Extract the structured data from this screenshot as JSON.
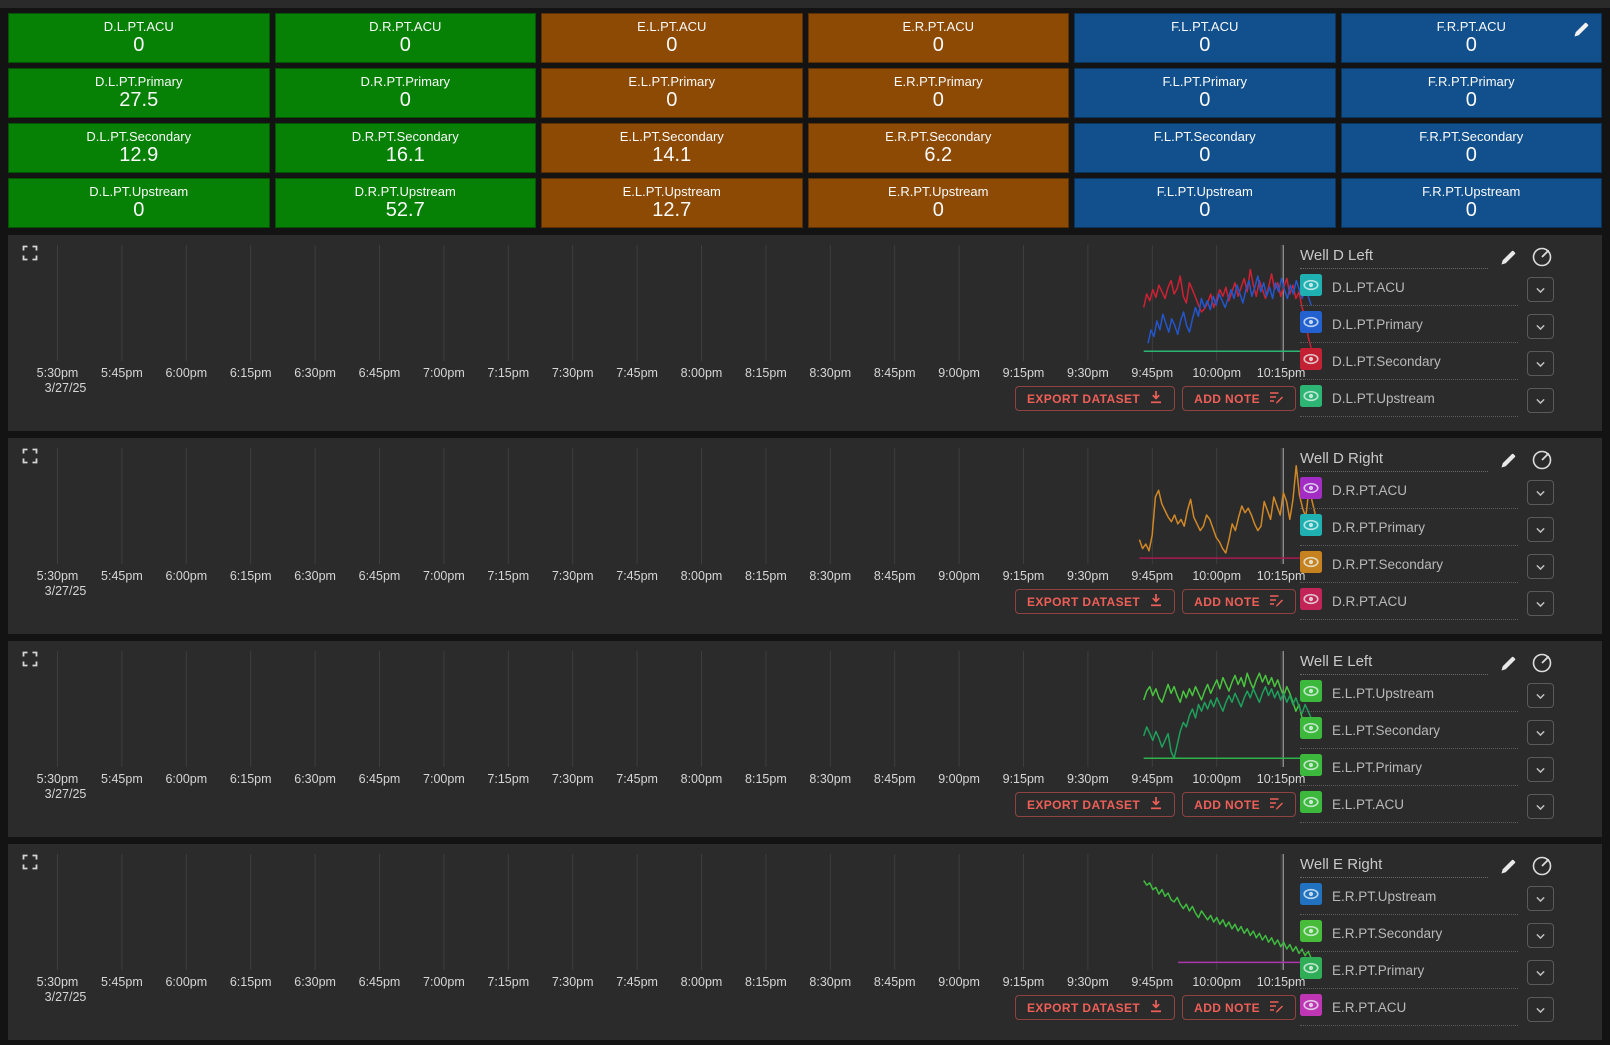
{
  "tile_colors": {
    "green": "#068106",
    "brown": "#8c4a04",
    "blue": "#11508c"
  },
  "tiles": [
    {
      "label": "D.L.PT.ACU",
      "value": "0",
      "color": "green"
    },
    {
      "label": "D.R.PT.ACU",
      "value": "0",
      "color": "green"
    },
    {
      "label": "E.L.PT.ACU",
      "value": "0",
      "color": "brown"
    },
    {
      "label": "E.R.PT.ACU",
      "value": "0",
      "color": "brown"
    },
    {
      "label": "F.L.PT.ACU",
      "value": "0",
      "color": "blue"
    },
    {
      "label": "F.R.PT.ACU",
      "value": "0",
      "color": "blue",
      "edit_icon": true
    },
    {
      "label": "D.L.PT.Primary",
      "value": "27.5",
      "color": "green"
    },
    {
      "label": "D.R.PT.Primary",
      "value": "0",
      "color": "green"
    },
    {
      "label": "E.L.PT.Primary",
      "value": "0",
      "color": "brown"
    },
    {
      "label": "E.R.PT.Primary",
      "value": "0",
      "color": "brown"
    },
    {
      "label": "F.L.PT.Primary",
      "value": "0",
      "color": "blue"
    },
    {
      "label": "F.R.PT.Primary",
      "value": "0",
      "color": "blue"
    },
    {
      "label": "D.L.PT.Secondary",
      "value": "12.9",
      "color": "green"
    },
    {
      "label": "D.R.PT.Secondary",
      "value": "16.1",
      "color": "green"
    },
    {
      "label": "E.L.PT.Secondary",
      "value": "14.1",
      "color": "brown"
    },
    {
      "label": "E.R.PT.Secondary",
      "value": "6.2",
      "color": "brown"
    },
    {
      "label": "F.L.PT.Secondary",
      "value": "0",
      "color": "blue"
    },
    {
      "label": "F.R.PT.Secondary",
      "value": "0",
      "color": "blue"
    },
    {
      "label": "D.L.PT.Upstream",
      "value": "0",
      "color": "green"
    },
    {
      "label": "D.R.PT.Upstream",
      "value": "52.7",
      "color": "green"
    },
    {
      "label": "E.L.PT.Upstream",
      "value": "12.7",
      "color": "brown"
    },
    {
      "label": "E.R.PT.Upstream",
      "value": "0",
      "color": "brown"
    },
    {
      "label": "F.L.PT.Upstream",
      "value": "0",
      "color": "blue"
    },
    {
      "label": "F.R.PT.Upstream",
      "value": "0",
      "color": "blue"
    }
  ],
  "axis": {
    "ticks": [
      "5:30pm",
      "5:45pm",
      "6:00pm",
      "6:15pm",
      "6:30pm",
      "6:45pm",
      "7:00pm",
      "7:15pm",
      "7:30pm",
      "7:45pm",
      "8:00pm",
      "8:15pm",
      "8:30pm",
      "8:45pm",
      "9:00pm",
      "9:15pm",
      "9:30pm",
      "9:45pm",
      "10:00pm",
      "10:15pm"
    ],
    "date": "3/27/25"
  },
  "actions": {
    "export_label": "EXPORT DATASET",
    "add_note_label": "ADD NOTE"
  },
  "panels": [
    {
      "title": "Well D Left",
      "legend": [
        {
          "label": "D.L.PT.ACU",
          "color": "#1fb1b1"
        },
        {
          "label": "D.L.PT.Primary",
          "color": "#2361d1"
        },
        {
          "label": "D.L.PT.Secondary",
          "color": "#c32033"
        },
        {
          "label": "D.L.PT.Upstream",
          "color": "#2cb573"
        }
      ]
    },
    {
      "title": "Well D Right",
      "legend": [
        {
          "label": "D.R.PT.ACU",
          "color": "#a22cc4"
        },
        {
          "label": "D.R.PT.Primary",
          "color": "#1fb1b1"
        },
        {
          "label": "D.R.PT.Secondary",
          "color": "#c5821f"
        },
        {
          "label": "D.R.PT.ACU",
          "color": "#c22457"
        }
      ]
    },
    {
      "title": "Well E Left",
      "legend": [
        {
          "label": "E.L.PT.Upstream",
          "color": "#3cb83c"
        },
        {
          "label": "E.L.PT.Secondary",
          "color": "#3cb83c"
        },
        {
          "label": "E.L.PT.Primary",
          "color": "#3cb83c"
        },
        {
          "label": "E.L.PT.ACU",
          "color": "#3cb83c"
        }
      ]
    },
    {
      "title": "Well E Right",
      "legend": [
        {
          "label": "E.R.PT.Upstream",
          "color": "#2173c2"
        },
        {
          "label": "E.R.PT.Secondary",
          "color": "#47bb3a"
        },
        {
          "label": "E.R.PT.Primary",
          "color": "#2fae57"
        },
        {
          "label": "E.R.PT.ACU",
          "color": "#bf36b4"
        }
      ]
    }
  ],
  "chart_data": [
    {
      "type": "line",
      "title": "Well D Left",
      "x_axis": {
        "start": "5:30pm",
        "end": "10:22pm",
        "tick_interval_min": 15
      },
      "cursor_time": "10:15pm",
      "grid": true,
      "series": [
        {
          "name": "D.L.PT.Secondary",
          "color": "#cf2134",
          "start_min": 253,
          "end_min": 292,
          "values": [
            46,
            58,
            52,
            62,
            55,
            66,
            60,
            54,
            64,
            70,
            58,
            63,
            74,
            56,
            50,
            68,
            62,
            55,
            48,
            42,
            45,
            50,
            58,
            46,
            54,
            62,
            56,
            64,
            52,
            60,
            68,
            56,
            64,
            72,
            60,
            80,
            66,
            56,
            70,
            62,
            54,
            64,
            76,
            62,
            68,
            56,
            64,
            72,
            58,
            66,
            54,
            60,
            46,
            38,
            20,
            10
          ]
        },
        {
          "name": "D.L.PT.Primary",
          "color": "#2356cc",
          "start_min": 254,
          "end_min": 292,
          "values": [
            14,
            26,
            20,
            34,
            26,
            40,
            32,
            24,
            36,
            30,
            22,
            34,
            42,
            30,
            24,
            36,
            46,
            38,
            54,
            46,
            52,
            44,
            56,
            48,
            58,
            52,
            46,
            54,
            62,
            54,
            66,
            58,
            50,
            62,
            70,
            56,
            64,
            74,
            60,
            68,
            56,
            64,
            54,
            68,
            60,
            72,
            62,
            54,
            66,
            58,
            70,
            62,
            54,
            64,
            56,
            48
          ]
        },
        {
          "name": "D.L.PT.Upstream",
          "color": "#2bb573",
          "start_min": 253,
          "end_min": 291,
          "values": [
            7,
            7
          ]
        }
      ]
    },
    {
      "type": "line",
      "title": "Well D Right",
      "x_axis": {
        "start": "5:30pm",
        "end": "10:22pm",
        "tick_interval_min": 15
      },
      "cursor_time": "10:15pm",
      "grid": true,
      "series": [
        {
          "name": "D.R.PT.Secondary",
          "color": "#d08827",
          "start_min": 252,
          "end_min": 293,
          "values": [
            20,
            12,
            16,
            10,
            24,
            58,
            64,
            52,
            46,
            40,
            36,
            42,
            34,
            38,
            32,
            46,
            56,
            40,
            34,
            28,
            32,
            42,
            38,
            30,
            22,
            18,
            12,
            8,
            20,
            34,
            28,
            40,
            50,
            44,
            48,
            42,
            34,
            28,
            32,
            54,
            46,
            38,
            58,
            50,
            42,
            62,
            54,
            38,
            56,
            86,
            60,
            48,
            40,
            66,
            54,
            42
          ]
        },
        {
          "name": "D.R.PT.ACU",
          "color": "#a81a52",
          "start_min": 252,
          "end_min": 293,
          "values": [
            3.5,
            3.5
          ]
        }
      ]
    },
    {
      "type": "line",
      "title": "Well E Left",
      "x_axis": {
        "start": "5:30pm",
        "end": "10:22pm",
        "tick_interval_min": 15
      },
      "cursor_time": "10:15pm",
      "grid": true,
      "series": [
        {
          "name": "E.L.PT.Upstream",
          "color": "#49c43f",
          "start_min": 253,
          "end_min": 292,
          "values": [
            58,
            66,
            70,
            62,
            68,
            60,
            56,
            64,
            72,
            64,
            70,
            62,
            56,
            66,
            60,
            68,
            62,
            70,
            64,
            58,
            66,
            72,
            64,
            70,
            76,
            68,
            78,
            72,
            66,
            74,
            80,
            72,
            78,
            70,
            82,
            74,
            68,
            76,
            82,
            74,
            80,
            72,
            78,
            70,
            76,
            68,
            62,
            70,
            64,
            56,
            48,
            54,
            42,
            36,
            28,
            28
          ]
        },
        {
          "name": "E.L.PT.Secondary",
          "color": "#1ea05c",
          "start_min": 253,
          "end_min": 292,
          "values": [
            26,
            34,
            28,
            22,
            30,
            24,
            16,
            22,
            28,
            12,
            6,
            18,
            30,
            38,
            34,
            44,
            50,
            42,
            54,
            48,
            56,
            50,
            58,
            52,
            60,
            54,
            48,
            56,
            62,
            56,
            64,
            58,
            52,
            60,
            66,
            60,
            68,
            62,
            56,
            64,
            70,
            62,
            68,
            60,
            66,
            58,
            64,
            56,
            62,
            54,
            60,
            52,
            46,
            54,
            48,
            42
          ]
        },
        {
          "name": "E.L.PT.ACU",
          "color": "#2eb34a",
          "start_min": 253,
          "end_min": 291,
          "values": [
            6,
            6
          ]
        }
      ]
    },
    {
      "type": "line",
      "title": "Well E Right",
      "x_axis": {
        "start": "5:30pm",
        "end": "10:22pm",
        "tick_interval_min": 15
      },
      "cursor_time": "10:15pm",
      "grid": true,
      "series": [
        {
          "name": "E.R.PT.Secondary",
          "color": "#3fbb3f",
          "start_min": 253,
          "end_min": 292,
          "values": [
            78,
            74,
            76,
            70,
            72,
            66,
            70,
            64,
            67,
            61,
            59,
            63,
            57,
            53,
            57,
            51,
            55,
            49,
            45,
            51,
            47,
            43,
            47,
            41,
            45,
            39,
            43,
            37,
            41,
            35,
            39,
            33,
            37,
            31,
            35,
            29,
            33,
            27,
            31,
            25,
            29,
            23,
            27,
            21,
            25,
            19,
            23,
            17,
            21,
            15,
            19,
            13,
            17,
            11,
            15,
            9
          ]
        },
        {
          "name": "E.R.PT.ACU",
          "color": "#ae35ae",
          "start_min": 261,
          "end_min": 293,
          "values": [
            5,
            5
          ]
        }
      ]
    }
  ]
}
